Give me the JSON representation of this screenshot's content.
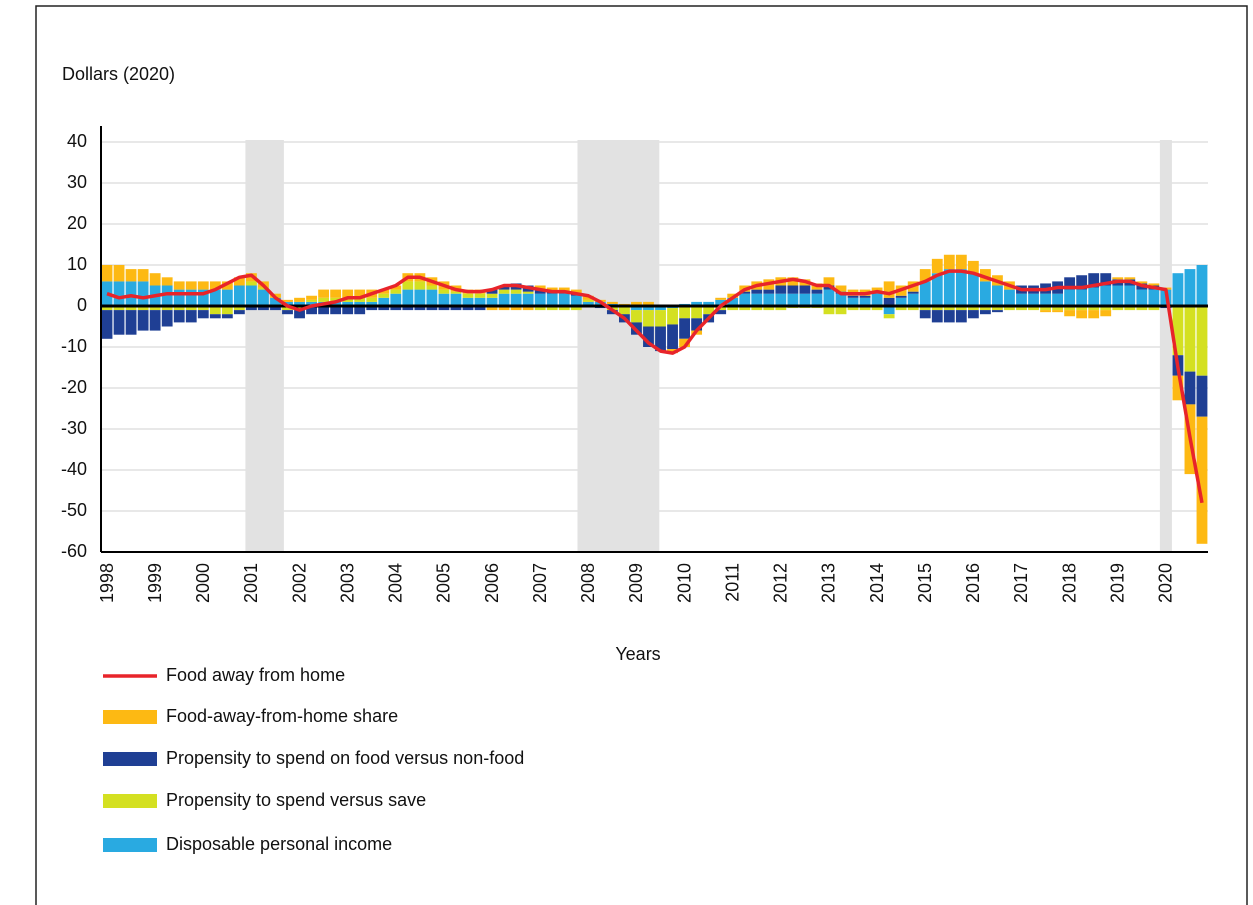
{
  "chart_data": {
    "type": "stacked-bar-line",
    "y_axis_label": "Dollars (2020)",
    "x_axis_label": "Years",
    "categories": [
      "1998",
      null,
      null,
      null,
      "1999",
      null,
      null,
      null,
      "2000",
      null,
      null,
      null,
      "2001",
      null,
      null,
      null,
      "2002",
      null,
      null,
      null,
      "2003",
      null,
      null,
      null,
      "2004",
      null,
      null,
      null,
      "2005",
      null,
      null,
      null,
      "2006",
      null,
      null,
      null,
      "2007",
      null,
      null,
      null,
      "2008",
      null,
      null,
      null,
      "2009",
      null,
      null,
      null,
      "2010",
      null,
      null,
      null,
      "2011",
      null,
      null,
      null,
      "2012",
      null,
      null,
      null,
      "2013",
      null,
      null,
      null,
      "2014",
      null,
      null,
      null,
      "2015",
      null,
      null,
      null,
      "2016",
      null,
      null,
      null,
      "2017",
      null,
      null,
      null,
      "2018",
      null,
      null,
      null,
      "2019",
      null,
      null,
      null,
      "2020",
      null,
      null,
      null
    ],
    "ylim": [
      -60,
      40
    ],
    "yticks": [
      -60,
      -50,
      -40,
      -30,
      -20,
      -10,
      0,
      10,
      20,
      30,
      40
    ],
    "grid": true,
    "shaded_spans": [
      [
        2001.0,
        2001.8
      ],
      [
        2007.9,
        2009.6
      ],
      [
        2020.0,
        2020.25
      ]
    ],
    "line": {
      "name": "Food away from home",
      "color": "#e8242a",
      "values": [
        3,
        2,
        2.5,
        2,
        2.5,
        3,
        3,
        3,
        3,
        4,
        5.5,
        7,
        7.5,
        5,
        2,
        0,
        -1,
        0,
        0.5,
        1,
        2,
        2,
        3,
        4,
        5,
        7,
        7,
        6,
        5,
        4,
        3.5,
        3.5,
        4,
        5,
        5,
        4.5,
        4,
        3.5,
        3.5,
        3,
        2.5,
        1,
        -1,
        -3,
        -6,
        -9,
        -11,
        -11.5,
        -10,
        -6,
        -3,
        0,
        2,
        4,
        5,
        5.5,
        6,
        6.5,
        6,
        5,
        5,
        3,
        3,
        3,
        3.5,
        3,
        4,
        5,
        6,
        7.5,
        8.5,
        8.5,
        8,
        7,
        6,
        5,
        4,
        4,
        4,
        4.5,
        4.5,
        4.5,
        5,
        5.5,
        6,
        6,
        5,
        4.5,
        4,
        -15,
        -32,
        -48
      ]
    },
    "series": [
      {
        "name": "Disposable personal income",
        "color": "#29aae1",
        "values": [
          6,
          6,
          6,
          6,
          5,
          5,
          4,
          4,
          4,
          4,
          4,
          5,
          5,
          4,
          2,
          1,
          1,
          1,
          1,
          1,
          1,
          1,
          1,
          2,
          3,
          4,
          4,
          4,
          3,
          3,
          2,
          2,
          2,
          3,
          3,
          3,
          3,
          3,
          3,
          2.5,
          1,
          1,
          0.5,
          0,
          -1,
          -1,
          -1,
          -0.5,
          0.5,
          1,
          1,
          1.5,
          2,
          3,
          3,
          3,
          3,
          3,
          3,
          3,
          4,
          3,
          2,
          2,
          3,
          -2,
          2,
          3,
          6,
          8,
          9,
          9,
          8,
          6,
          5,
          4,
          3,
          3,
          3,
          3,
          4,
          4,
          4.5,
          5,
          5,
          5,
          4,
          4,
          4,
          8,
          9,
          10
        ]
      },
      {
        "name": "Propensity to spend versus save",
        "color": "#d4e021",
        "values": [
          -1,
          -1,
          -1,
          -1,
          -1,
          -1,
          -1,
          -1,
          -1,
          -2,
          -2,
          -1,
          1,
          0.5,
          0,
          -1,
          -1,
          0.5,
          1,
          1,
          1,
          1,
          1,
          1,
          1,
          2,
          2,
          1,
          1,
          0.5,
          1,
          1,
          1,
          1,
          1,
          0.5,
          -1,
          -1,
          -1,
          -1,
          0.5,
          0,
          -1,
          -2,
          -3,
          -4,
          -4,
          -4,
          -3,
          -3,
          -2,
          -1,
          -1,
          -1,
          -1,
          -1,
          -1,
          -0.5,
          -0.5,
          -0.5,
          -2,
          -2,
          -1,
          -1,
          -1,
          -1,
          -1,
          -1,
          -1,
          -1,
          -1,
          -1,
          -1,
          -1,
          -1,
          -1,
          -1,
          -1,
          -1,
          -1,
          -1,
          -1,
          -1,
          -1,
          -1,
          -1,
          -1,
          -1,
          0,
          -12,
          -16,
          -17
        ]
      },
      {
        "name": "Propensity to spend on food versus non-food",
        "color": "#1f3f94",
        "values": [
          -7,
          -6,
          -6,
          -5,
          -5,
          -4,
          -3,
          -3,
          -2,
          -1,
          -1,
          -1,
          -1,
          -1,
          -1,
          -1,
          -2,
          -2,
          -2,
          -2,
          -2,
          -2,
          -1,
          -1,
          -1,
          -1,
          -1,
          -1,
          -1,
          -1,
          -1,
          -1,
          1,
          1,
          1.5,
          1.5,
          1,
          0.5,
          0.5,
          0.5,
          0,
          -0.5,
          -1,
          -2,
          -3,
          -5,
          -6,
          -6,
          -5,
          -3,
          -2,
          -1,
          0,
          0.5,
          1,
          1,
          2,
          2,
          2,
          1,
          1,
          0.5,
          0.5,
          0.5,
          0.5,
          2,
          0.5,
          0.5,
          -2,
          -3,
          -3,
          -3,
          -2,
          -1,
          -0.5,
          0,
          2,
          2,
          2.5,
          3,
          3,
          3.5,
          3.5,
          3,
          1.5,
          1.5,
          1.5,
          1,
          -0.5,
          -5,
          -8,
          -10
        ]
      },
      {
        "name": "Food-away-from-home share",
        "color": "#fdb913",
        "values": [
          4,
          4,
          3,
          3,
          3,
          2,
          2,
          2,
          2,
          2,
          2,
          2,
          2,
          1.5,
          1,
          0.5,
          1,
          1,
          2,
          2,
          2,
          2,
          2,
          1,
          1,
          2,
          2,
          2,
          2,
          1.5,
          1,
          1,
          -1,
          -1,
          -1,
          -1,
          1,
          1,
          1,
          1,
          1,
          0.5,
          0.5,
          0.5,
          1,
          1,
          0,
          -1,
          -2,
          -1,
          0,
          0.5,
          1,
          1.5,
          2,
          2.5,
          2,
          2,
          1.5,
          1.5,
          2,
          1.5,
          1.5,
          1.5,
          1,
          4,
          2.5,
          2.5,
          3,
          3.5,
          3.5,
          3.5,
          3,
          3,
          2.5,
          2,
          0,
          0,
          -0.5,
          -0.5,
          -1.5,
          -2,
          -2,
          -1.5,
          0.5,
          0.5,
          0.5,
          0.5,
          0.5,
          -6,
          -17,
          -31
        ]
      }
    ]
  }
}
